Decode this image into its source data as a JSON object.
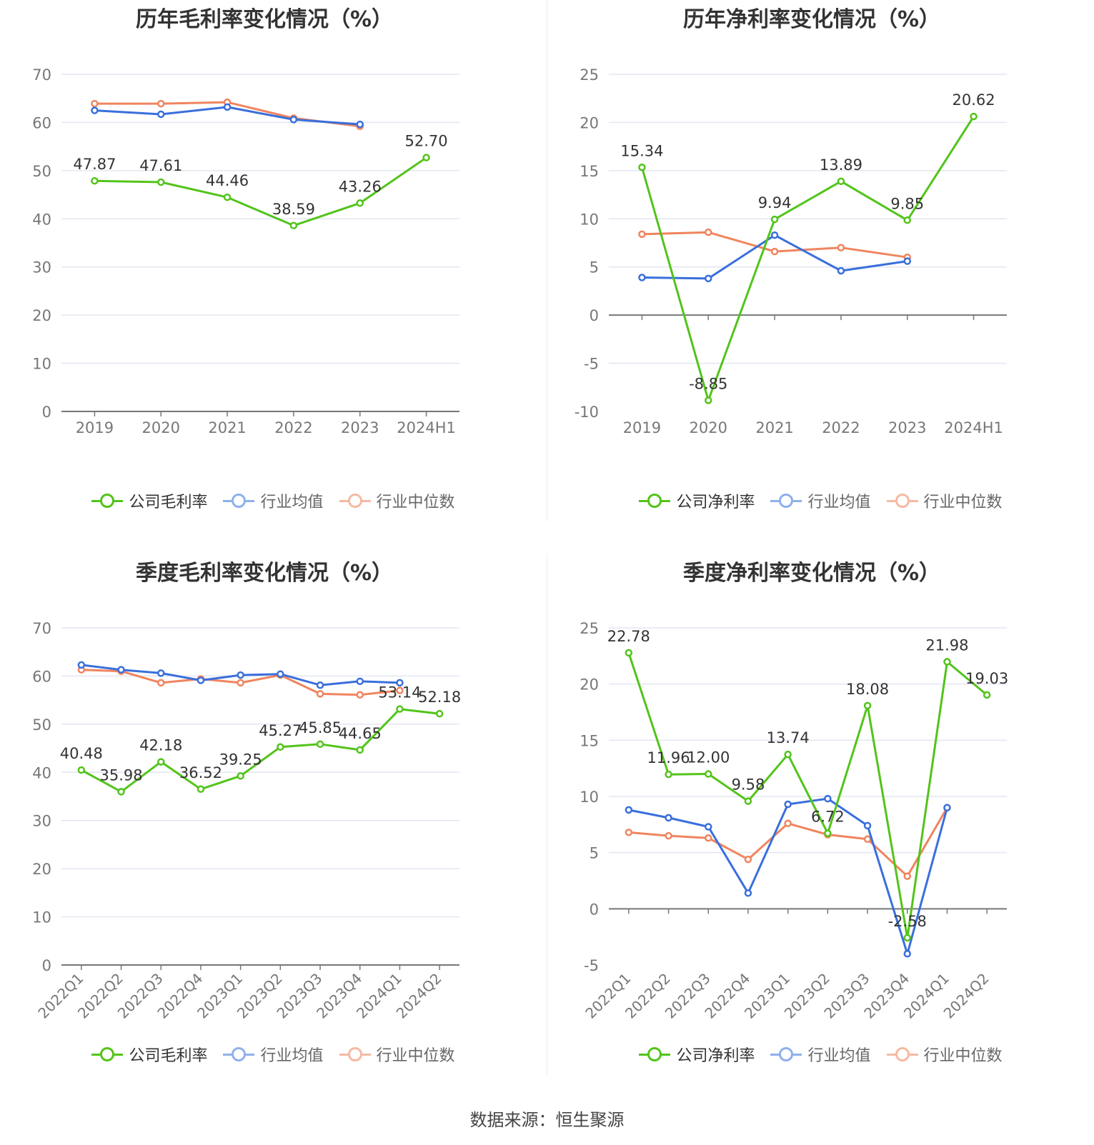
{
  "source": "数据来源：恒生聚源",
  "colors": {
    "company": "#52c41a",
    "industry_avg": "#3a6fdc",
    "industry_median": "#f0845e"
  },
  "chart_data": [
    {
      "type": "line",
      "title": "历年毛利率变化情况（%）",
      "x": [
        "2019",
        "2020",
        "2021",
        "2022",
        "2023",
        "2024H1"
      ],
      "ylim": [
        0,
        70
      ],
      "yticks": [
        0,
        10,
        20,
        30,
        40,
        50,
        60,
        70
      ],
      "grid": true,
      "x_label_rotation": 0,
      "legend_position": "bottom",
      "series": [
        {
          "name": "公司毛利率",
          "color": "#52c41a",
          "labels": true,
          "values": [
            47.87,
            47.61,
            44.46,
            38.59,
            43.26,
            52.7
          ]
        },
        {
          "name": "行业均值",
          "color": "#3a6fdc",
          "labels": false,
          "values": [
            62.5,
            61.7,
            63.2,
            60.6,
            59.6,
            null
          ]
        },
        {
          "name": "行业中位数",
          "color": "#f0845e",
          "labels": false,
          "values": [
            63.9,
            63.9,
            64.2,
            60.9,
            59.2,
            null
          ]
        }
      ]
    },
    {
      "type": "line",
      "title": "历年净利率变化情况（%）",
      "x": [
        "2019",
        "2020",
        "2021",
        "2022",
        "2023",
        "2024H1"
      ],
      "ylim": [
        -10,
        25
      ],
      "yticks": [
        -10,
        -5,
        0,
        5,
        10,
        15,
        20,
        25
      ],
      "grid": true,
      "x_label_rotation": 0,
      "legend_position": "bottom",
      "series": [
        {
          "name": "公司净利率",
          "color": "#52c41a",
          "labels": true,
          "values": [
            15.34,
            -8.85,
            9.94,
            13.89,
            9.85,
            20.62
          ]
        },
        {
          "name": "行业均值",
          "color": "#3a6fdc",
          "labels": false,
          "values": [
            3.9,
            3.8,
            8.3,
            4.6,
            5.6,
            null
          ]
        },
        {
          "name": "行业中位数",
          "color": "#f0845e",
          "labels": false,
          "values": [
            8.4,
            8.6,
            6.6,
            7.0,
            6.0,
            null
          ]
        }
      ]
    },
    {
      "type": "line",
      "title": "季度毛利率变化情况（%）",
      "x": [
        "2022Q1",
        "2022Q2",
        "2022Q3",
        "2022Q4",
        "2023Q1",
        "2023Q2",
        "2023Q3",
        "2023Q4",
        "2024Q1",
        "2024Q2"
      ],
      "ylim": [
        0,
        70
      ],
      "yticks": [
        0,
        10,
        20,
        30,
        40,
        50,
        60,
        70
      ],
      "grid": true,
      "x_label_rotation": -45,
      "legend_position": "bottom",
      "series": [
        {
          "name": "公司毛利率",
          "color": "#52c41a",
          "labels": true,
          "values": [
            40.48,
            35.98,
            42.18,
            36.52,
            39.25,
            45.27,
            45.85,
            44.65,
            53.14,
            52.18
          ]
        },
        {
          "name": "行业均值",
          "color": "#3a6fdc",
          "labels": false,
          "values": [
            62.3,
            61.3,
            60.6,
            59.1,
            60.2,
            60.4,
            58.1,
            58.9,
            58.6,
            null
          ]
        },
        {
          "name": "行业中位数",
          "color": "#f0845e",
          "labels": false,
          "values": [
            61.3,
            61.0,
            58.6,
            59.4,
            58.6,
            60.2,
            56.3,
            56.1,
            57.0,
            null
          ]
        }
      ]
    },
    {
      "type": "line",
      "title": "季度净利率变化情况（%）",
      "x": [
        "2022Q1",
        "2022Q2",
        "2022Q3",
        "2022Q4",
        "2023Q1",
        "2023Q2",
        "2023Q3",
        "2023Q4",
        "2024Q1",
        "2024Q2"
      ],
      "ylim": [
        -5,
        25
      ],
      "yticks": [
        -5,
        0,
        5,
        10,
        15,
        20,
        25
      ],
      "grid": true,
      "x_label_rotation": -45,
      "legend_position": "bottom",
      "series": [
        {
          "name": "公司净利率",
          "color": "#52c41a",
          "labels": true,
          "values": [
            22.78,
            11.96,
            12.0,
            9.58,
            13.74,
            6.72,
            18.08,
            -2.58,
            21.98,
            19.03
          ]
        },
        {
          "name": "行业均值",
          "color": "#3a6fdc",
          "labels": false,
          "values": [
            8.8,
            8.1,
            7.3,
            1.4,
            9.3,
            9.8,
            7.4,
            -4.0,
            9.0,
            null
          ]
        },
        {
          "name": "行业中位数",
          "color": "#f0845e",
          "labels": false,
          "values": [
            6.8,
            6.5,
            6.3,
            4.4,
            7.6,
            6.6,
            6.2,
            2.9,
            9.0,
            null
          ]
        }
      ]
    }
  ]
}
